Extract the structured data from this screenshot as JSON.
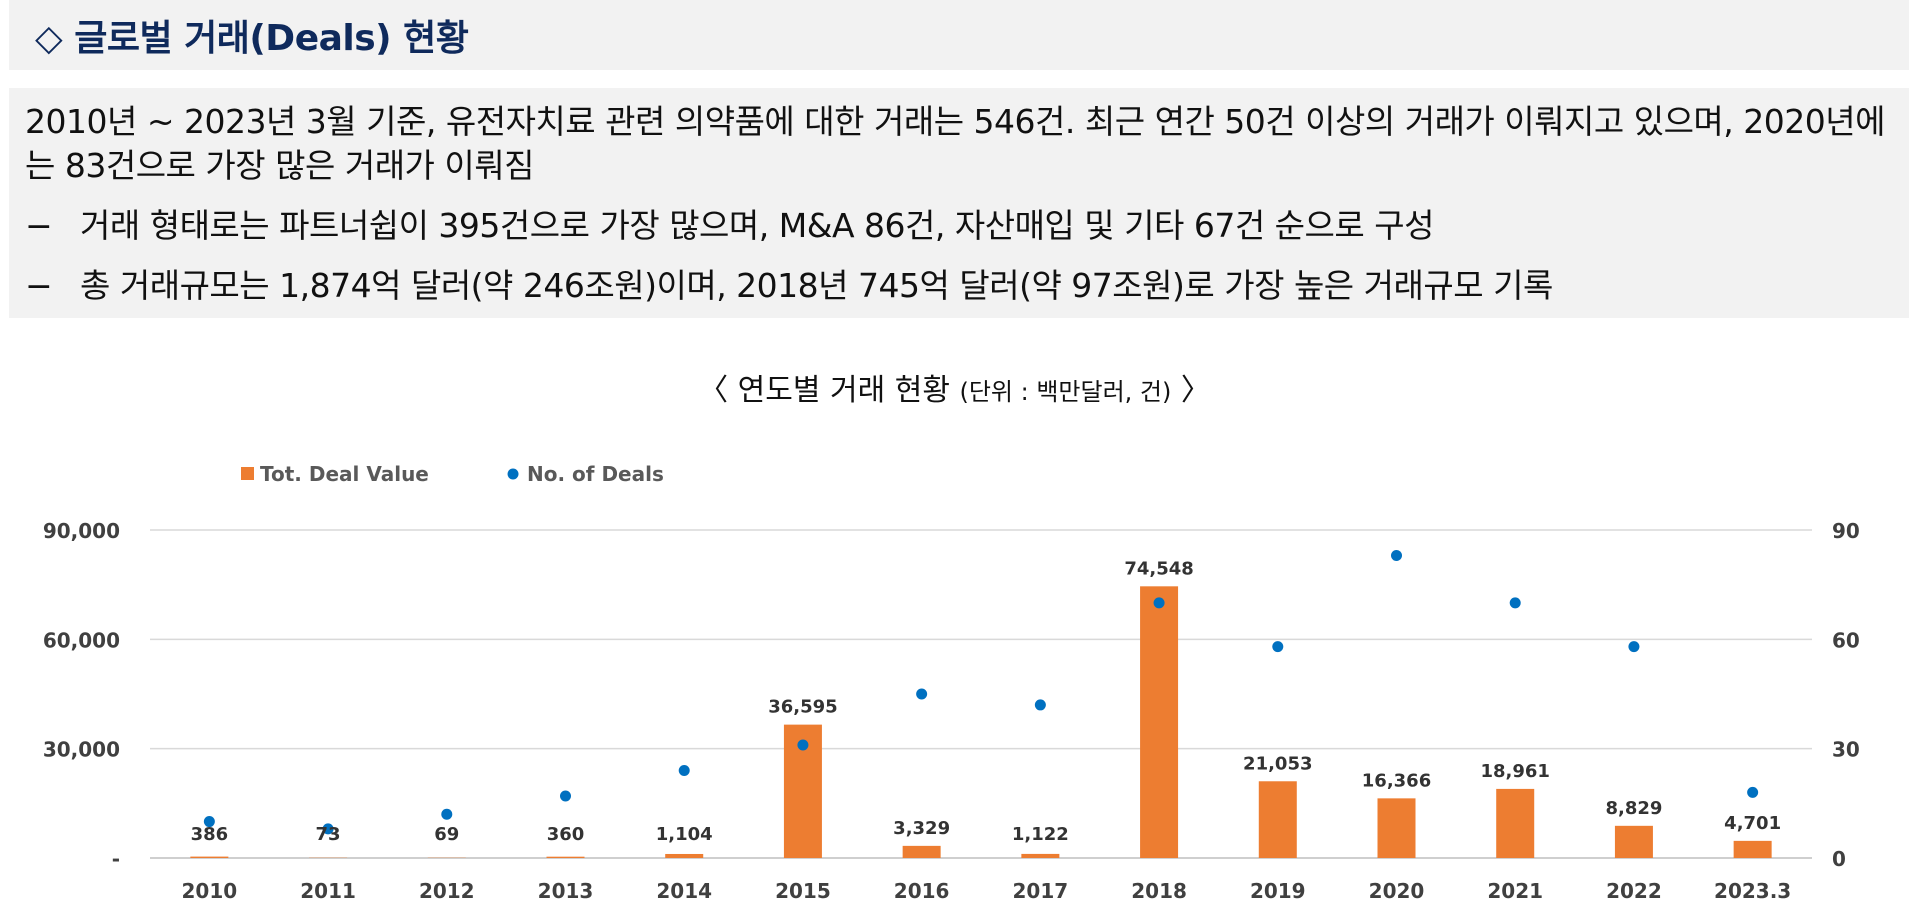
{
  "header": {
    "title": "◇ 글로벌 거래(Deals) 현황"
  },
  "summary": {
    "main": "2010년 ~ 2023년 3월 기준, 유전자치료 관련 의약품에 대한 거래는 546건. 최근 연간 50건 이상의 거래가 이뤄지고 있으며, 2020년에는 83건으로 가장 많은 거래가 이뤄짐",
    "bullets": [
      {
        "dash": "−",
        "text": "거래 형태로는 파트너쉽이 395건으로 가장 많으며, M&A 86건, 자산매입 및 기타 67건 순으로 구성"
      },
      {
        "dash": "−",
        "text": "총 거래규모는 1,874억 달러(약 246조원)이며, 2018년 745억 달러(약 97조원)로 가장 높은 거래규모 기록"
      }
    ]
  },
  "chart_title": {
    "open": "〈",
    "main": "연도별 거래 현황",
    "unit": "(단위 : 백만달러, 건)",
    "close": "〉"
  },
  "chart_data": {
    "type": "bar",
    "categories": [
      "2010",
      "2011",
      "2012",
      "2013",
      "2014",
      "2015",
      "2016",
      "2017",
      "2018",
      "2019",
      "2020",
      "2021",
      "2022",
      "2023.3"
    ],
    "series": [
      {
        "name": "Tot. Deal Value",
        "type": "bar",
        "axis": "left",
        "color": "#ed7d31",
        "values": [
          386,
          73,
          69,
          360,
          1104,
          36595,
          3329,
          1122,
          74548,
          21053,
          16366,
          18961,
          8829,
          4701
        ],
        "labels": [
          "386",
          "73",
          "69",
          "360",
          "1,104",
          "36,595",
          "3,329",
          "1,122",
          "74,548",
          "21,053",
          "16,366",
          "18,961",
          "8,829",
          "4,701"
        ]
      },
      {
        "name": "No. of Deals",
        "type": "scatter",
        "axis": "right",
        "color": "#0070c0",
        "values": [
          10,
          8,
          12,
          17,
          24,
          31,
          45,
          42,
          70,
          58,
          83,
          70,
          58,
          18
        ]
      }
    ],
    "y_left": {
      "range": [
        0,
        90000
      ],
      "ticks": [
        0,
        30000,
        60000,
        90000
      ],
      "tick_labels": [
        "-",
        "30,000",
        "60,000",
        "90,000"
      ]
    },
    "y_right": {
      "range": [
        0,
        90
      ],
      "ticks": [
        0,
        30,
        60,
        90
      ],
      "tick_labels": [
        "0",
        "30",
        "60",
        "90"
      ]
    },
    "grid": true,
    "legend_position": "top-left"
  }
}
